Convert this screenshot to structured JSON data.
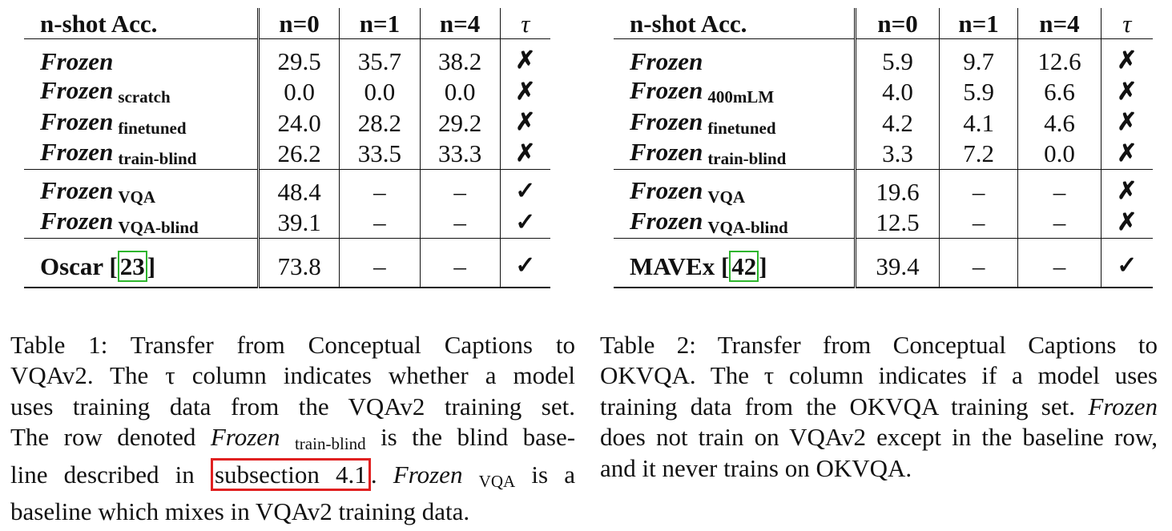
{
  "table1": {
    "headers": {
      "model": "n-shot Acc.",
      "n0": "n=0",
      "n1": "n=1",
      "n4": "n=4",
      "tau": "τ"
    },
    "rows": [
      {
        "name": "Frozen",
        "sub": "",
        "n0": "29.5",
        "n1": "35.7",
        "n4": "38.2",
        "tau": "✗"
      },
      {
        "name": "Frozen",
        "sub": "scratch",
        "n0": "0.0",
        "n1": "0.0",
        "n4": "0.0",
        "tau": "✗"
      },
      {
        "name": "Frozen",
        "sub": "finetuned",
        "n0": "24.0",
        "n1": "28.2",
        "n4": "29.2",
        "tau": "✗"
      },
      {
        "name": "Frozen",
        "sub": "train-blind",
        "n0": "26.2",
        "n1": "33.5",
        "n4": "33.3",
        "tau": "✗"
      },
      {
        "name": "Frozen",
        "sub": "VQA",
        "n0": "48.4",
        "n1": "–",
        "n4": "–",
        "tau": "✓"
      },
      {
        "name": "Frozen",
        "sub": "VQA-blind",
        "n0": "39.1",
        "n1": "–",
        "n4": "–",
        "tau": "✓"
      }
    ],
    "baseline": {
      "name": "Oscar",
      "ref": "23",
      "n0": "73.8",
      "n1": "–",
      "n4": "–",
      "tau": "✓"
    }
  },
  "table2": {
    "headers": {
      "model": "n-shot Acc.",
      "n0": "n=0",
      "n1": "n=1",
      "n4": "n=4",
      "tau": "τ"
    },
    "rows": [
      {
        "name": "Frozen",
        "sub": "",
        "n0": "5.9",
        "n1": "9.7",
        "n4": "12.6",
        "tau": "✗"
      },
      {
        "name": "Frozen",
        "sub": "400mLM",
        "n0": "4.0",
        "n1": "5.9",
        "n4": "6.6",
        "tau": "✗"
      },
      {
        "name": "Frozen",
        "sub": "finetuned",
        "n0": "4.2",
        "n1": "4.1",
        "n4": "4.6",
        "tau": "✗"
      },
      {
        "name": "Frozen",
        "sub": "train-blind",
        "n0": "3.3",
        "n1": "7.2",
        "n4": "0.0",
        "tau": "✗"
      },
      {
        "name": "Frozen",
        "sub": "VQA",
        "n0": "19.6",
        "n1": "–",
        "n4": "–",
        "tau": "✗"
      },
      {
        "name": "Frozen",
        "sub": "VQA-blind",
        "n0": "12.5",
        "n1": "–",
        "n4": "–",
        "tau": "✗"
      }
    ],
    "baseline": {
      "name": "MAVEx",
      "ref": "42",
      "n0": "39.4",
      "n1": "–",
      "n4": "–",
      "tau": "✓"
    }
  },
  "caption1": {
    "l1": "Table 1: Transfer from Conceptual Captions to",
    "l2": "VQAv2. The τ column indicates whether a model",
    "l3": "uses training data from the VQAv2 training set.",
    "l4a": "The row denoted",
    "l4_frozen": "Frozen",
    "l4_sub": "train-blind",
    "l4b": "is the blind base-",
    "l5a": "line described in",
    "l5_link": "subsection 4.1",
    "l5b": ".",
    "l5_frozen": "Frozen",
    "l5_sub": "VQA",
    "l5c": "is a",
    "l6": "baseline which mixes in VQAv2 training data."
  },
  "caption2": {
    "l1": "Table 2: Transfer from Conceptual Captions to",
    "l2": "OKVQA. The τ column indicates if a model uses",
    "l3a": "training data from the OKVQA training set.",
    "l3_frozen": "Frozen",
    "l4": "does not train on VQAv2 except in the baseline row,",
    "l5": "and it never trains on OKVQA."
  }
}
